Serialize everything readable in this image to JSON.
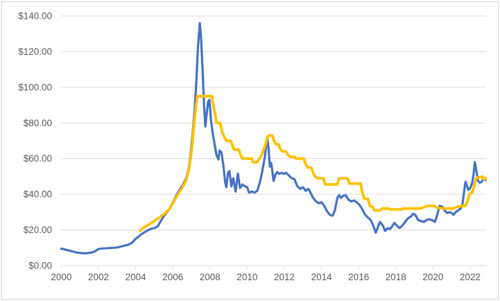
{
  "styles": {
    "background": "#FFFFFF",
    "frame_border_color": "#D2D0D0",
    "gridline_color": "#D9D9D9",
    "axis_line_color": "#D9D9D9",
    "tick_color": "#D9D9D9",
    "label_color": "#595959",
    "series_blue": "#4472C4",
    "series_gold": "#FFC000"
  },
  "chart_data": {
    "type": "line",
    "title": "",
    "xlabel": "",
    "ylabel": "",
    "grid": true,
    "legend_position": "none",
    "x_axis": {
      "range": [
        2000,
        2022.9
      ],
      "tick_years": [
        2000,
        2002,
        2004,
        2006,
        2008,
        2010,
        2012,
        2014,
        2016,
        2018,
        2020,
        2022
      ],
      "tick_labels": [
        "2000",
        "2002",
        "2004",
        "2006",
        "2008",
        "2010",
        "2012",
        "2014",
        "2016",
        "2018",
        "2020",
        "2022"
      ]
    },
    "y_axis": {
      "range": [
        0,
        140
      ],
      "tick_values": [
        0,
        20,
        40,
        60,
        80,
        100,
        120,
        140
      ],
      "tick_labels": [
        "$0.00",
        "$20.00",
        "$40.00",
        "$60.00",
        "$80.00",
        "$100.00",
        "$120.00",
        "$140.00"
      ]
    },
    "series": [
      {
        "name": "blue-series",
        "color_key": "series_blue",
        "points": [
          [
            2000.0,
            9.5
          ],
          [
            2000.15,
            9.2
          ],
          [
            2000.3,
            8.8
          ],
          [
            2000.45,
            8.4
          ],
          [
            2000.6,
            8.0
          ],
          [
            2000.8,
            7.4
          ],
          [
            2001.0,
            7.1
          ],
          [
            2001.2,
            6.9
          ],
          [
            2001.4,
            7.0
          ],
          [
            2001.6,
            7.3
          ],
          [
            2001.8,
            7.9
          ],
          [
            2002.0,
            9.3
          ],
          [
            2002.2,
            9.6
          ],
          [
            2002.5,
            9.8
          ],
          [
            2002.8,
            10.0
          ],
          [
            2003.0,
            10.2
          ],
          [
            2003.2,
            10.7
          ],
          [
            2003.4,
            11.2
          ],
          [
            2003.6,
            11.7
          ],
          [
            2003.8,
            12.8
          ],
          [
            2004.0,
            15.0
          ],
          [
            2004.15,
            16.2
          ],
          [
            2004.3,
            17.5
          ],
          [
            2004.45,
            18.5
          ],
          [
            2004.6,
            19.5
          ],
          [
            2004.75,
            20.3
          ],
          [
            2004.9,
            20.8
          ],
          [
            2005.05,
            21.2
          ],
          [
            2005.2,
            22.2
          ],
          [
            2005.35,
            25.0
          ],
          [
            2005.5,
            27.5
          ],
          [
            2005.65,
            29.5
          ],
          [
            2005.8,
            31.5
          ],
          [
            2005.95,
            34.5
          ],
          [
            2006.1,
            37.5
          ],
          [
            2006.25,
            40.5
          ],
          [
            2006.4,
            43.0
          ],
          [
            2006.55,
            45.5
          ],
          [
            2006.7,
            48.5
          ],
          [
            2006.85,
            54.0
          ],
          [
            2006.95,
            62.0
          ],
          [
            2007.05,
            72.0
          ],
          [
            2007.15,
            84.0
          ],
          [
            2007.25,
            100.0
          ],
          [
            2007.35,
            122.0
          ],
          [
            2007.45,
            136.0
          ],
          [
            2007.52,
            128.0
          ],
          [
            2007.6,
            110.0
          ],
          [
            2007.68,
            90.0
          ],
          [
            2007.75,
            78.0
          ],
          [
            2007.82,
            85.0
          ],
          [
            2007.9,
            92.0
          ],
          [
            2007.97,
            93.0
          ],
          [
            2008.05,
            82.0
          ],
          [
            2008.15,
            74.0
          ],
          [
            2008.25,
            68.0
          ],
          [
            2008.35,
            62.0
          ],
          [
            2008.45,
            59.5
          ],
          [
            2008.52,
            64.5
          ],
          [
            2008.62,
            63.5
          ],
          [
            2008.72,
            56.0
          ],
          [
            2008.82,
            46.5
          ],
          [
            2008.88,
            44.0
          ],
          [
            2008.97,
            52.0
          ],
          [
            2009.05,
            53.0
          ],
          [
            2009.15,
            44.5
          ],
          [
            2009.25,
            49.0
          ],
          [
            2009.38,
            41.5
          ],
          [
            2009.5,
            51.5
          ],
          [
            2009.62,
            43.5
          ],
          [
            2009.75,
            45.5
          ],
          [
            2009.88,
            44.5
          ],
          [
            2010.0,
            44.0
          ],
          [
            2010.1,
            41.0
          ],
          [
            2010.25,
            41.5
          ],
          [
            2010.4,
            41.0
          ],
          [
            2010.55,
            42.0
          ],
          [
            2010.68,
            46.5
          ],
          [
            2010.8,
            52.0
          ],
          [
            2010.95,
            61.0
          ],
          [
            2011.08,
            72.0
          ],
          [
            2011.15,
            66.0
          ],
          [
            2011.22,
            55.5
          ],
          [
            2011.3,
            57.5
          ],
          [
            2011.42,
            47.5
          ],
          [
            2011.52,
            51.0
          ],
          [
            2011.62,
            52.5
          ],
          [
            2011.72,
            51.5
          ],
          [
            2011.85,
            52.0
          ],
          [
            2011.95,
            51.5
          ],
          [
            2012.1,
            52.0
          ],
          [
            2012.25,
            50.5
          ],
          [
            2012.4,
            49.0
          ],
          [
            2012.55,
            48.5
          ],
          [
            2012.7,
            44.5
          ],
          [
            2012.85,
            43.0
          ],
          [
            2013.0,
            44.0
          ],
          [
            2013.15,
            42.0
          ],
          [
            2013.3,
            43.0
          ],
          [
            2013.45,
            40.0
          ],
          [
            2013.55,
            38.0
          ],
          [
            2013.7,
            36.0
          ],
          [
            2013.85,
            35.0
          ],
          [
            2014.0,
            35.5
          ],
          [
            2014.15,
            33.5
          ],
          [
            2014.3,
            30.5
          ],
          [
            2014.45,
            28.5
          ],
          [
            2014.6,
            28.0
          ],
          [
            2014.72,
            31.0
          ],
          [
            2014.85,
            38.0
          ],
          [
            2014.95,
            39.5
          ],
          [
            2015.05,
            38.0
          ],
          [
            2015.15,
            39.0
          ],
          [
            2015.3,
            39.5
          ],
          [
            2015.45,
            37.0
          ],
          [
            2015.6,
            36.0
          ],
          [
            2015.75,
            36.5
          ],
          [
            2015.9,
            35.5
          ],
          [
            2016.05,
            34.0
          ],
          [
            2016.2,
            31.5
          ],
          [
            2016.35,
            28.5
          ],
          [
            2016.5,
            27.0
          ],
          [
            2016.65,
            25.5
          ],
          [
            2016.8,
            22.0
          ],
          [
            2016.92,
            18.5
          ],
          [
            2017.05,
            22.0
          ],
          [
            2017.15,
            24.5
          ],
          [
            2017.3,
            22.5
          ],
          [
            2017.42,
            19.5
          ],
          [
            2017.55,
            21.0
          ],
          [
            2017.68,
            20.5
          ],
          [
            2017.8,
            22.0
          ],
          [
            2017.92,
            24.0
          ],
          [
            2018.05,
            22.5
          ],
          [
            2018.2,
            21.0
          ],
          [
            2018.35,
            22.5
          ],
          [
            2018.5,
            24.5
          ],
          [
            2018.65,
            26.5
          ],
          [
            2018.8,
            27.5
          ],
          [
            2018.92,
            29.0
          ],
          [
            2019.05,
            28.5
          ],
          [
            2019.2,
            25.5
          ],
          [
            2019.35,
            25.0
          ],
          [
            2019.5,
            24.5
          ],
          [
            2019.65,
            25.5
          ],
          [
            2019.8,
            26.0
          ],
          [
            2019.95,
            25.5
          ],
          [
            2020.1,
            24.5
          ],
          [
            2020.2,
            27.5
          ],
          [
            2020.35,
            33.5
          ],
          [
            2020.5,
            33.0
          ],
          [
            2020.62,
            31.0
          ],
          [
            2020.75,
            29.5
          ],
          [
            2020.88,
            30.0
          ],
          [
            2021.0,
            29.5
          ],
          [
            2021.1,
            28.5
          ],
          [
            2021.22,
            30.0
          ],
          [
            2021.35,
            31.0
          ],
          [
            2021.48,
            32.0
          ],
          [
            2021.58,
            34.0
          ],
          [
            2021.68,
            42.0
          ],
          [
            2021.75,
            47.0
          ],
          [
            2021.82,
            45.0
          ],
          [
            2021.9,
            42.5
          ],
          [
            2022.0,
            43.5
          ],
          [
            2022.1,
            46.0
          ],
          [
            2022.18,
            51.0
          ],
          [
            2022.25,
            58.0
          ],
          [
            2022.32,
            54.0
          ],
          [
            2022.42,
            47.5
          ],
          [
            2022.52,
            46.5
          ],
          [
            2022.62,
            47.0
          ],
          [
            2022.72,
            49.0
          ],
          [
            2022.82,
            48.0
          ]
        ]
      },
      {
        "name": "gold-series",
        "color_key": "series_gold",
        "points": [
          [
            2004.25,
            19.5
          ],
          [
            2004.4,
            21.0
          ],
          [
            2004.55,
            22.0
          ],
          [
            2004.7,
            23.0
          ],
          [
            2004.85,
            24.0
          ],
          [
            2005.0,
            25.0
          ],
          [
            2005.2,
            26.5
          ],
          [
            2005.4,
            28.0
          ],
          [
            2005.6,
            29.5
          ],
          [
            2005.8,
            31.5
          ],
          [
            2005.95,
            34.0
          ],
          [
            2006.1,
            37.0
          ],
          [
            2006.25,
            39.5
          ],
          [
            2006.4,
            42.0
          ],
          [
            2006.55,
            44.5
          ],
          [
            2006.7,
            47.5
          ],
          [
            2006.85,
            53.0
          ],
          [
            2006.95,
            60.0
          ],
          [
            2007.05,
            68.0
          ],
          [
            2007.15,
            80.0
          ],
          [
            2007.25,
            90.0
          ],
          [
            2007.32,
            95.0
          ],
          [
            2008.1,
            95.0
          ],
          [
            2008.18,
            90.0
          ],
          [
            2008.28,
            85.0
          ],
          [
            2008.35,
            80.0
          ],
          [
            2008.55,
            80.0
          ],
          [
            2008.65,
            75.0
          ],
          [
            2008.78,
            72.0
          ],
          [
            2008.88,
            70.0
          ],
          [
            2009.12,
            70.0
          ],
          [
            2009.22,
            67.0
          ],
          [
            2009.3,
            65.0
          ],
          [
            2009.55,
            65.0
          ],
          [
            2009.65,
            62.0
          ],
          [
            2009.75,
            60.0
          ],
          [
            2010.25,
            60.0
          ],
          [
            2010.32,
            58.0
          ],
          [
            2010.55,
            58.0
          ],
          [
            2010.65,
            60.0
          ],
          [
            2010.78,
            62.0
          ],
          [
            2010.88,
            65.0
          ],
          [
            2011.0,
            68.0
          ],
          [
            2011.08,
            72.0
          ],
          [
            2011.15,
            73.0
          ],
          [
            2011.35,
            73.0
          ],
          [
            2011.45,
            70.0
          ],
          [
            2011.55,
            68.0
          ],
          [
            2011.7,
            68.0
          ],
          [
            2011.8,
            65.0
          ],
          [
            2011.9,
            64.0
          ],
          [
            2012.1,
            64.0
          ],
          [
            2012.2,
            62.0
          ],
          [
            2012.32,
            61.0
          ],
          [
            2012.55,
            61.0
          ],
          [
            2012.65,
            60.0
          ],
          [
            2013.05,
            60.0
          ],
          [
            2013.15,
            57.0
          ],
          [
            2013.25,
            55.0
          ],
          [
            2013.45,
            55.0
          ],
          [
            2013.55,
            52.0
          ],
          [
            2013.65,
            50.0
          ],
          [
            2013.78,
            49.0
          ],
          [
            2014.1,
            49.0
          ],
          [
            2014.2,
            45.5
          ],
          [
            2014.85,
            45.5
          ],
          [
            2014.95,
            49.0
          ],
          [
            2015.4,
            49.0
          ],
          [
            2015.5,
            46.0
          ],
          [
            2016.1,
            46.0
          ],
          [
            2016.2,
            41.0
          ],
          [
            2016.3,
            37.5
          ],
          [
            2016.5,
            37.5
          ],
          [
            2016.6,
            33.5
          ],
          [
            2016.75,
            33.0
          ],
          [
            2016.85,
            31.0
          ],
          [
            2017.15,
            31.0
          ],
          [
            2017.25,
            32.0
          ],
          [
            2017.6,
            32.0
          ],
          [
            2017.7,
            31.5
          ],
          [
            2018.3,
            31.5
          ],
          [
            2018.4,
            32.0
          ],
          [
            2019.3,
            32.0
          ],
          [
            2019.45,
            32.5
          ],
          [
            2019.7,
            33.5
          ],
          [
            2020.1,
            33.5
          ],
          [
            2020.2,
            32.5
          ],
          [
            2020.55,
            32.0
          ],
          [
            2021.1,
            32.0
          ],
          [
            2021.3,
            33.0
          ],
          [
            2021.6,
            33.5
          ],
          [
            2021.75,
            33.5
          ],
          [
            2021.85,
            36.0
          ],
          [
            2021.95,
            40.0
          ],
          [
            2022.1,
            41.0
          ],
          [
            2022.2,
            44.0
          ],
          [
            2022.3,
            48.5
          ],
          [
            2022.4,
            49.5
          ],
          [
            2022.55,
            49.5
          ],
          [
            2022.65,
            50.0
          ],
          [
            2022.75,
            48.5
          ],
          [
            2022.85,
            49.0
          ]
        ]
      }
    ]
  }
}
